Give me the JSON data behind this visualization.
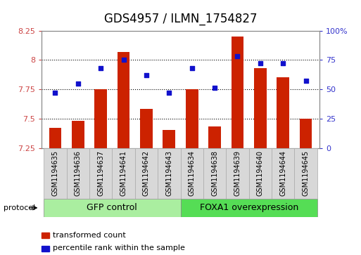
{
  "title": "GDS4957 / ILMN_1754827",
  "samples": [
    "GSM1194635",
    "GSM1194636",
    "GSM1194637",
    "GSM1194641",
    "GSM1194642",
    "GSM1194643",
    "GSM1194634",
    "GSM1194638",
    "GSM1194639",
    "GSM1194640",
    "GSM1194644",
    "GSM1194645"
  ],
  "bar_values": [
    7.42,
    7.48,
    7.75,
    8.07,
    7.58,
    7.4,
    7.75,
    7.43,
    8.2,
    7.93,
    7.85,
    7.5
  ],
  "dot_values": [
    47,
    55,
    68,
    75,
    62,
    47,
    68,
    51,
    78,
    72,
    72,
    57
  ],
  "ylim_left": [
    7.25,
    8.25
  ],
  "ylim_right": [
    0,
    100
  ],
  "yticks_left": [
    7.25,
    7.5,
    7.75,
    8.0,
    8.25
  ],
  "yticks_right": [
    0,
    25,
    50,
    75,
    100
  ],
  "ytick_labels_left": [
    "7.25",
    "7.5",
    "7.75",
    "8",
    "8.25"
  ],
  "ytick_labels_right": [
    "0",
    "25",
    "50",
    "75",
    "100%"
  ],
  "bar_color": "#cc2200",
  "dot_color": "#1111cc",
  "bar_bottom": 7.25,
  "groups": [
    {
      "label": "GFP control",
      "start": 0,
      "end": 6,
      "color": "#aaeea0"
    },
    {
      "label": "FOXA1 overexpression",
      "start": 6,
      "end": 12,
      "color": "#55dd55"
    }
  ],
  "legend_items": [
    {
      "label": "transformed count",
      "color": "#cc2200"
    },
    {
      "label": "percentile rank within the sample",
      "color": "#1111cc"
    }
  ],
  "protocol_label": "protocol",
  "bg_color": "#ffffff",
  "plot_bg_color": "#ffffff",
  "tick_label_color_left": "#cc4444",
  "tick_label_color_right": "#3333cc",
  "cell_bg_color": "#d8d8d8",
  "title_fontsize": 12,
  "tick_fontsize": 8,
  "sample_fontsize": 7,
  "group_label_fontsize": 9,
  "legend_fontsize": 8
}
